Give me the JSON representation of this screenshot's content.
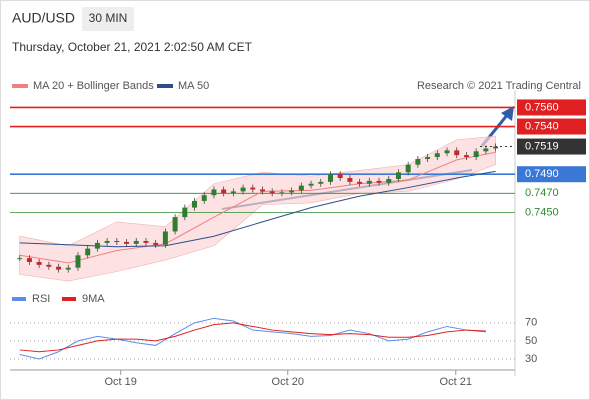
{
  "chart_data": {
    "type": "candlestick",
    "symbol": "AUD/USD",
    "timeframe": "30 MIN",
    "datetime": "Thursday, October 21, 2021 2:02:50 AM CET",
    "legend": [
      "MA 20 + Bollinger Bands",
      "MA 50"
    ],
    "credit": "Research © 2021 Trading Central",
    "close": [
      0.7402,
      0.7398,
      0.7395,
      0.7393,
      0.739,
      0.7392,
      0.7405,
      0.7412,
      0.7418,
      0.742,
      0.7419,
      0.7417,
      0.742,
      0.7418,
      0.7416,
      0.743,
      0.7445,
      0.7455,
      0.7462,
      0.7468,
      0.7474,
      0.747,
      0.7472,
      0.7476,
      0.7474,
      0.7472,
      0.747,
      0.7471,
      0.7473,
      0.7478,
      0.748,
      0.7482,
      0.749,
      0.7486,
      0.7482,
      0.748,
      0.7483,
      0.7481,
      0.7485,
      0.7492,
      0.75,
      0.7506,
      0.7508,
      0.7512,
      0.7515,
      0.751,
      0.7508,
      0.7514,
      0.7517,
      0.7519
    ],
    "lines_x": [
      0,
      5,
      10,
      15,
      20,
      25,
      30,
      35,
      40,
      45,
      49
    ],
    "series": [
      {
        "name": "MA 20 + Bollinger Bands",
        "color": "#f08080",
        "values": [
          0.7405,
          0.7397,
          0.741,
          0.7417,
          0.7445,
          0.7472,
          0.7473,
          0.748,
          0.7484,
          0.7505,
          0.7513
        ],
        "upper": [
          0.7425,
          0.7415,
          0.744,
          0.7435,
          0.748,
          0.7492,
          0.7488,
          0.7494,
          0.75,
          0.7526,
          0.753
        ],
        "lower": [
          0.7385,
          0.7378,
          0.7388,
          0.74,
          0.7415,
          0.7458,
          0.746,
          0.747,
          0.7472,
          0.7485,
          0.75
        ]
      },
      {
        "name": "MA 50",
        "color": "#2c4f8c",
        "values": [
          0.7418,
          0.7416,
          0.7414,
          0.7415,
          0.7425,
          0.744,
          0.7455,
          0.7467,
          0.7476,
          0.7486,
          0.7493
        ]
      }
    ],
    "levels": [
      {
        "value": 0.756,
        "label": "0.7560",
        "color": "#e02020"
      },
      {
        "value": 0.754,
        "label": "0.7540",
        "color": "#e02020"
      },
      {
        "value": 0.7519,
        "label": "0.7519",
        "color": "#333333"
      },
      {
        "value": 0.749,
        "label": "0.7490",
        "color": "#3a78d8"
      },
      {
        "value": 0.747,
        "label": "0.7470",
        "color": "#2e8b2e"
      },
      {
        "value": 0.745,
        "label": "0.7450",
        "color": "#2e8b2e"
      }
    ],
    "ylim": [
      0.7377,
      0.7572
    ],
    "xlim": [
      -1,
      51
    ],
    "xticks": [
      {
        "value": 10.4,
        "label": "Oct 19"
      },
      {
        "value": 27.6,
        "label": "Oct 20"
      },
      {
        "value": 44.9,
        "label": "Oct 21"
      }
    ],
    "rsi": {
      "x": [
        0,
        2,
        4,
        6,
        8,
        10,
        12,
        14,
        16,
        18,
        20,
        22,
        24,
        26,
        28,
        30,
        32,
        34,
        36,
        38,
        40,
        42,
        44,
        46,
        48
      ],
      "ylim": [
        20,
        82
      ],
      "yticks": [
        30,
        50,
        70
      ],
      "series": [
        {
          "name": "RSI",
          "color": "#5b8ee6",
          "values": [
            35,
            30,
            38,
            50,
            55,
            52,
            48,
            45,
            58,
            70,
            75,
            72,
            62,
            60,
            58,
            55,
            56,
            62,
            58,
            50,
            52,
            60,
            66,
            62,
            60
          ]
        },
        {
          "name": "9MA",
          "color": "#e02020",
          "values": [
            40,
            38,
            40,
            45,
            50,
            52,
            52,
            50,
            55,
            62,
            68,
            70,
            66,
            62,
            60,
            58,
            57,
            58,
            57,
            54,
            54,
            56,
            60,
            62,
            61
          ]
        }
      ]
    }
  }
}
